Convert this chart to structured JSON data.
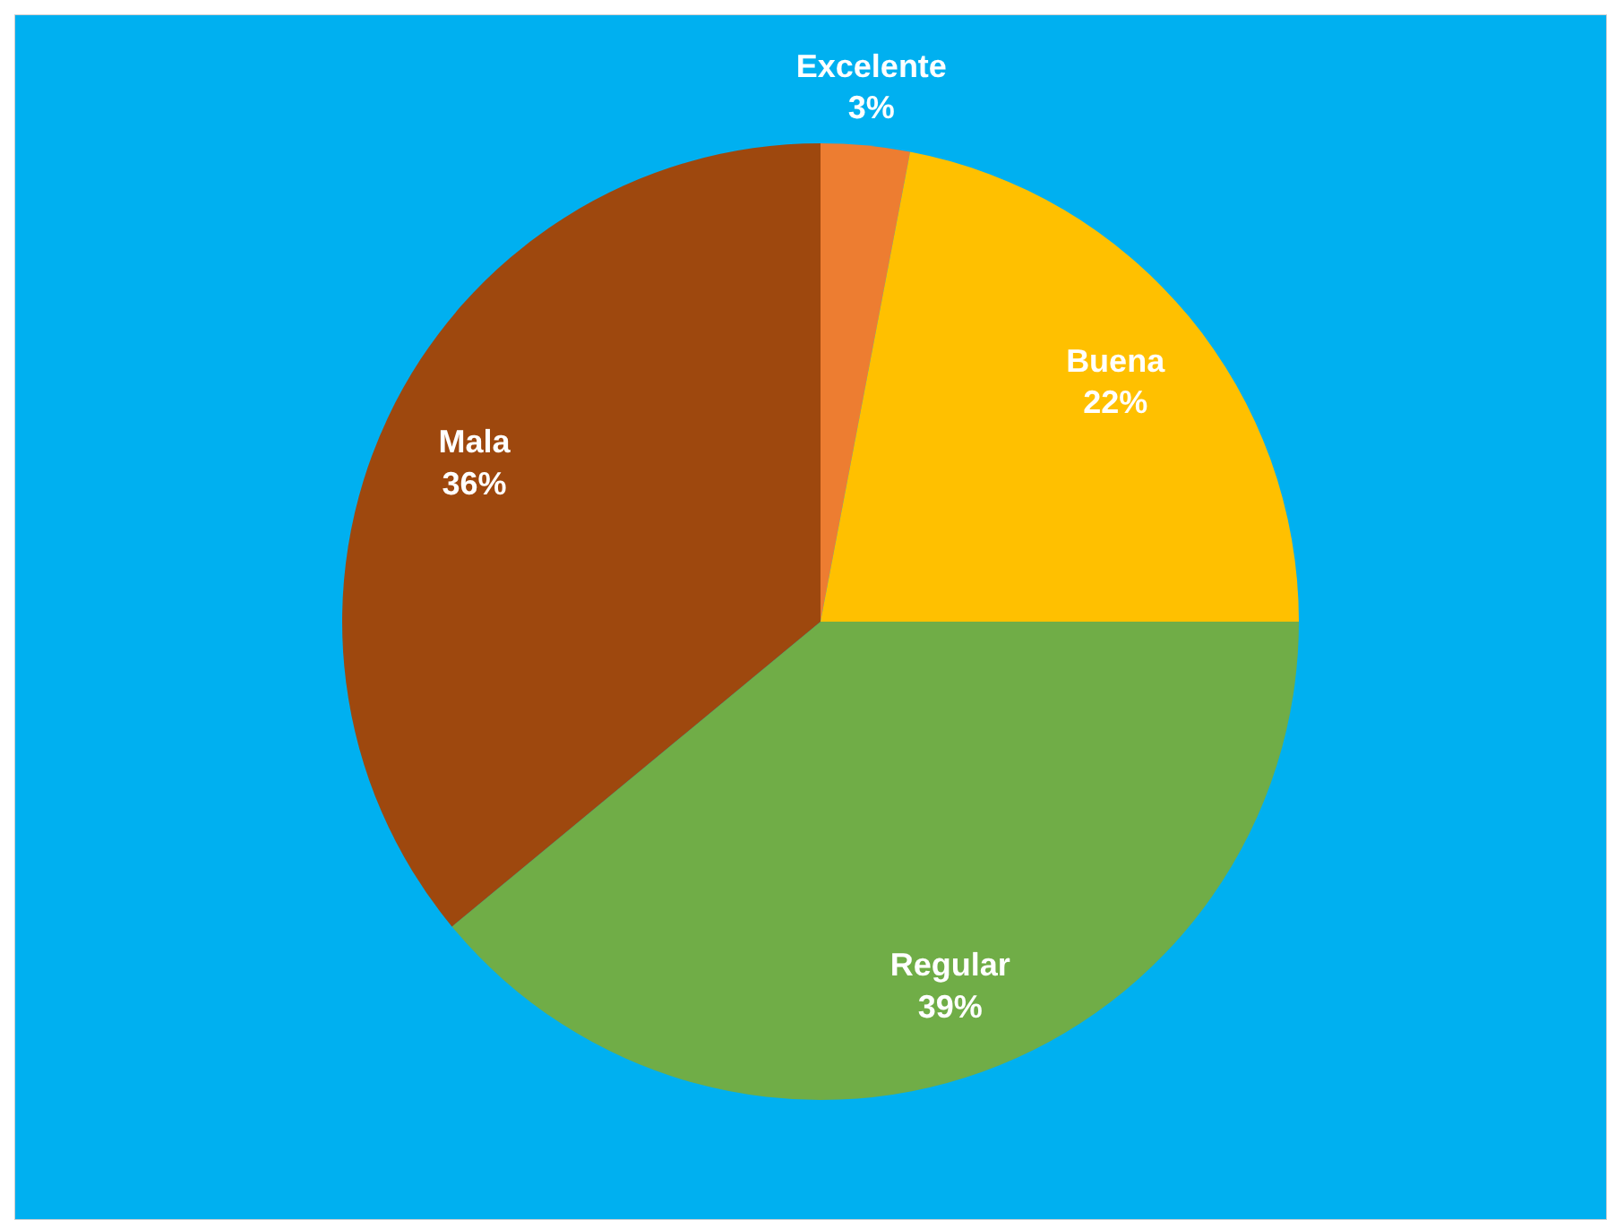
{
  "chart_data": {
    "type": "pie",
    "categories": [
      "Excelente",
      "Buena",
      "Regular",
      "Mala"
    ],
    "values": [
      3,
      22,
      39,
      36
    ],
    "colors": [
      "#ed7d31",
      "#ffc000",
      "#70ad47",
      "#9e480e"
    ],
    "value_labels": [
      "3%",
      "22%",
      "39%",
      "36%"
    ]
  }
}
